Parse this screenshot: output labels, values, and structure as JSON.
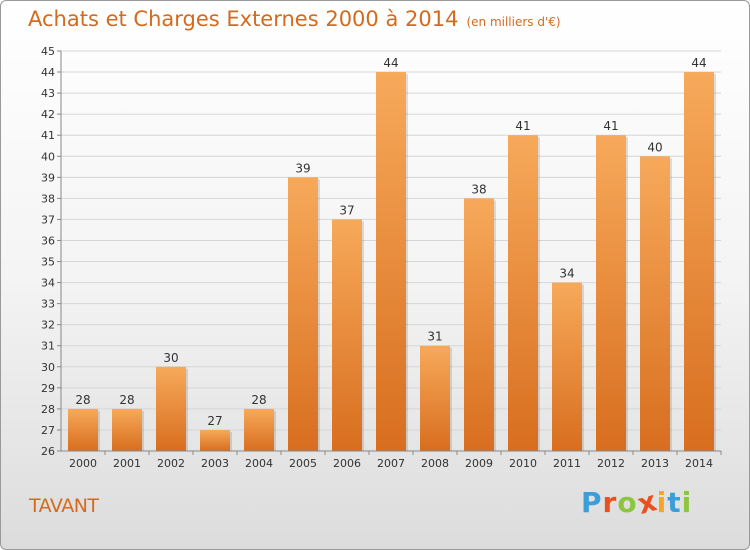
{
  "title": "Achats et Charges Externes 2000 à 2014",
  "unit": "(en milliers d'€)",
  "commune": "TAVANT",
  "logo": {
    "letters": [
      "P",
      "r",
      "o",
      "x",
      "i",
      "t",
      "i"
    ],
    "colors": [
      "#3c9ed8",
      "#e8511e",
      "#8cc63f",
      "#e8511e",
      "#f2a72a",
      "#3c9ed8",
      "#8cc63f"
    ]
  },
  "colors": {
    "bar_light": "#f7a95a",
    "bar_dark": "#d86e1f",
    "title": "#d46a1e"
  },
  "chart_data": {
    "type": "bar",
    "categories": [
      "2000",
      "2001",
      "2002",
      "2003",
      "2004",
      "2005",
      "2006",
      "2007",
      "2008",
      "2009",
      "2010",
      "2011",
      "2012",
      "2013",
      "2014"
    ],
    "values": [
      28,
      28,
      30,
      27,
      28,
      39,
      37,
      44,
      31,
      38,
      41,
      34,
      41,
      40,
      44
    ],
    "ylim": [
      26,
      45
    ],
    "yticks": [
      26,
      27,
      28,
      29,
      30,
      31,
      32,
      33,
      34,
      35,
      36,
      37,
      38,
      39,
      40,
      41,
      42,
      43,
      44,
      45
    ],
    "grid": true,
    "xlabel": "",
    "ylabel": ""
  }
}
